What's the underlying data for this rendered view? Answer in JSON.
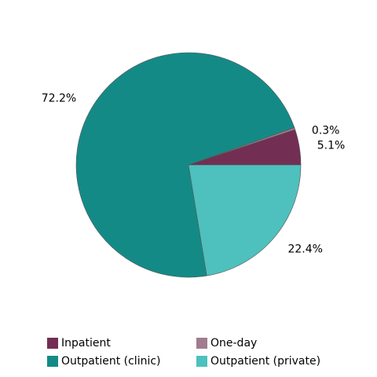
{
  "chart_data": {
    "type": "pie",
    "categories": [
      "Inpatient",
      "One-day",
      "Outpatient (clinic)",
      "Outpatient (private)"
    ],
    "values": [
      5.1,
      0.3,
      72.2,
      22.4
    ],
    "value_labels": [
      "5.1%",
      "0.3%",
      "72.2%",
      "22.4%"
    ],
    "colors": [
      "#722f53",
      "#a07c8e",
      "#148a87",
      "#4ec0be"
    ]
  }
}
